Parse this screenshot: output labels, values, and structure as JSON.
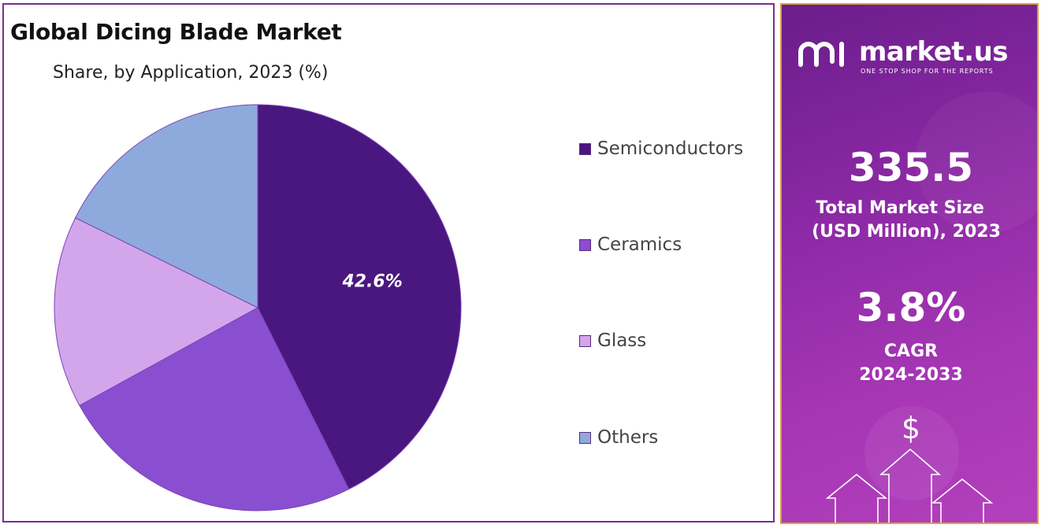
{
  "chart_data": {
    "type": "pie",
    "title": "Global Dicing Blade Market",
    "subtitle": "Share, by Application, 2023 (%)",
    "slices": [
      {
        "name": "Semiconductors",
        "value": 42.6,
        "color": "#4a1680",
        "label": "42.6%"
      },
      {
        "name": "Ceramics",
        "value": 24.4,
        "color": "#8a4fd0",
        "label": ""
      },
      {
        "name": "Glass",
        "value": 15.3,
        "color": "#d3a6ec",
        "label": ""
      },
      {
        "name": "Others",
        "value": 17.7,
        "color": "#8eaadc",
        "label": ""
      }
    ],
    "legend_position": "right"
  },
  "sidebar": {
    "brand_name": "market.us",
    "brand_tagline": "ONE STOP SHOP FOR THE REPORTS",
    "market_size_value": "335.5",
    "market_size_label_1": "Total Market Size",
    "market_size_label_2": "(USD Million), 2023",
    "cagr_value": "3.8%",
    "cagr_label_1": "CAGR",
    "cagr_label_2": "2024-2033",
    "currency_symbol": "$",
    "icons": [
      "brand-logo-icon",
      "arrow-up-icon",
      "dollar-coin-icon"
    ]
  }
}
